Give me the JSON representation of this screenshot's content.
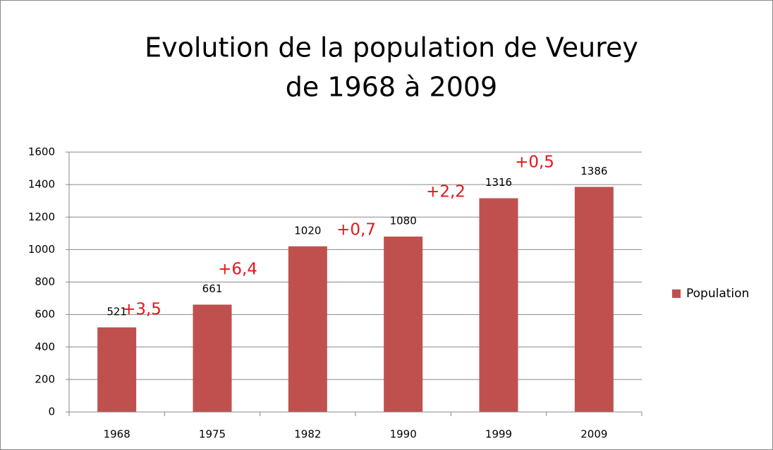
{
  "chart_data": {
    "type": "bar",
    "title": [
      "Evolution de la population de Veurey",
      "de 1968 à 2009"
    ],
    "categories": [
      "1968",
      "1975",
      "1982",
      "1990",
      "1999",
      "2009"
    ],
    "series": [
      {
        "name": "Population",
        "color": "#c0504d",
        "values": [
          521,
          661,
          1020,
          1080,
          1316,
          1386
        ]
      }
    ],
    "ylim": [
      0,
      1600
    ],
    "yticks": [
      0,
      200,
      400,
      600,
      800,
      1000,
      1200,
      1400,
      1600
    ],
    "grid": true,
    "legend": "right",
    "annotations": [
      "+3,5",
      "+6,4",
      "+0,7",
      "+2,2",
      "+0,5"
    ]
  }
}
